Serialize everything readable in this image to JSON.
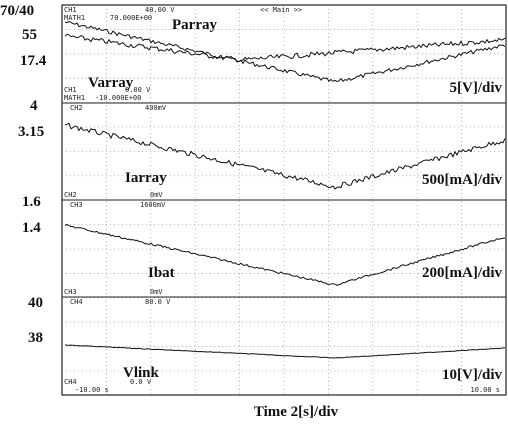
{
  "left_labels": [
    "70/40",
    "55",
    "17.4",
    "4",
    "3.15",
    "1.6",
    "1.4",
    "40",
    "38"
  ],
  "traces": [
    {
      "name": "Parray"
    },
    {
      "name": "Varray",
      "scale": "5[V]/div"
    },
    {
      "name": "Iarray",
      "scale": "500[mA]/div"
    },
    {
      "name": "Ibat",
      "scale": "200[mA]/div"
    },
    {
      "name": "Vlink",
      "scale": "10[V]/div"
    }
  ],
  "scope_texts": [
    "CH1",
    "40.00 V",
    "MATH1",
    "70.000E+00",
    "<< Main >>",
    "CH1",
    "0.00 V",
    "MATH1",
    "-10.000E+00",
    "CH2",
    "400mV",
    "CH2",
    "0mV",
    "CH3",
    "1600mV",
    "CH3",
    "0mV",
    "CH4",
    "80.0 V",
    "CH4",
    "0.0 V",
    "-10.00 s",
    "10.00 s"
  ],
  "x_label": "Time 2[s]/div"
}
